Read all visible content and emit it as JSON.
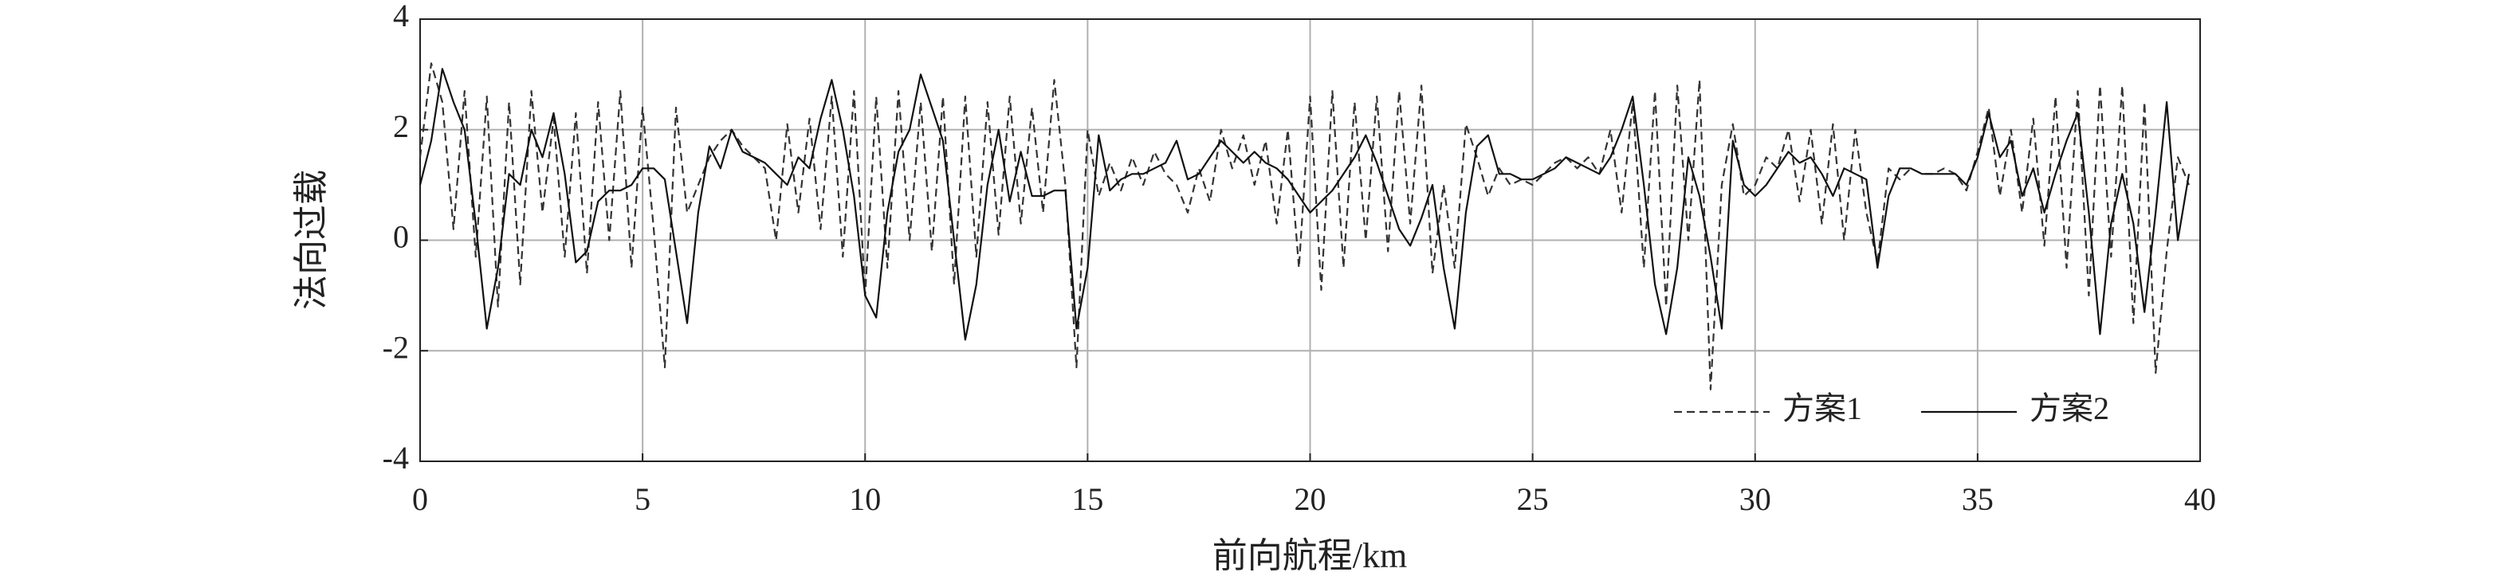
{
  "chart_data": {
    "type": "line",
    "xlabel": "前向航程/km",
    "ylabel": "法向过载",
    "xlim": [
      0,
      40
    ],
    "xticks": [
      0,
      5,
      10,
      15,
      20,
      25,
      30,
      35,
      40
    ],
    "ylim": [
      -4,
      4
    ],
    "yticks": [
      -4,
      -2,
      0,
      2,
      4
    ],
    "grid": true,
    "legend": "lower right",
    "x": [
      0,
      0.25,
      0.5,
      0.75,
      1,
      1.25,
      1.5,
      1.75,
      2,
      2.25,
      2.5,
      2.75,
      3,
      3.25,
      3.5,
      3.75,
      4,
      4.25,
      4.5,
      4.75,
      5,
      5.25,
      5.5,
      5.75,
      6,
      6.25,
      6.5,
      6.75,
      7,
      7.25,
      7.5,
      7.75,
      8,
      8.25,
      8.5,
      8.75,
      9,
      9.25,
      9.5,
      9.75,
      10,
      10.25,
      10.5,
      10.75,
      11,
      11.25,
      11.5,
      11.75,
      12,
      12.25,
      12.5,
      12.75,
      13,
      13.25,
      13.5,
      13.75,
      14,
      14.25,
      14.5,
      14.75,
      15,
      15.25,
      15.5,
      15.75,
      16,
      16.25,
      16.5,
      16.75,
      17,
      17.25,
      17.5,
      17.75,
      18,
      18.25,
      18.5,
      18.75,
      19,
      19.25,
      19.5,
      19.75,
      20,
      20.25,
      20.5,
      20.75,
      21,
      21.25,
      21.5,
      21.75,
      22,
      22.25,
      22.5,
      22.75,
      23,
      23.25,
      23.5,
      23.75,
      24,
      24.25,
      24.5,
      24.75,
      25,
      25.25,
      25.5,
      25.75,
      26,
      26.25,
      26.5,
      26.75,
      27,
      27.25,
      27.5,
      27.75,
      28,
      28.25,
      28.5,
      28.75,
      29,
      29.25,
      29.5,
      29.75,
      30,
      30.25,
      30.5,
      30.75,
      31,
      31.25,
      31.5,
      31.75,
      32,
      32.25,
      32.5,
      32.75,
      33,
      33.25,
      33.5,
      33.75,
      34,
      34.25,
      34.5,
      34.75,
      35,
      35.25,
      35.5,
      35.75,
      36,
      36.25,
      36.5,
      36.75,
      37,
      37.25,
      37.5,
      37.75,
      38,
      38.25,
      38.5,
      38.75,
      39,
      39.25,
      39.5,
      39.75
    ],
    "series": [
      {
        "name": "方案1",
        "color": "#333333",
        "style": "dashed",
        "values": [
          1.5,
          3.2,
          2.5,
          0.2,
          2.7,
          -0.3,
          2.6,
          -1.2,
          2.5,
          -0.8,
          2.7,
          0.5,
          2.2,
          -0.3,
          2.3,
          -0.6,
          2.5,
          0.0,
          2.7,
          -0.5,
          2.4,
          0.2,
          -2.3,
          2.4,
          0.5,
          1.0,
          1.5,
          1.8,
          2.0,
          1.7,
          1.5,
          1.3,
          0.0,
          2.1,
          0.5,
          2.2,
          0.2,
          2.6,
          -0.3,
          2.7,
          -1.0,
          2.6,
          -0.5,
          2.7,
          0.0,
          2.5,
          -0.2,
          2.6,
          -0.8,
          2.6,
          -0.3,
          2.5,
          0.1,
          2.6,
          0.3,
          2.4,
          0.5,
          2.9,
          1.0,
          -2.3,
          2.0,
          0.8,
          1.4,
          0.9,
          1.5,
          1.0,
          1.6,
          1.2,
          1.0,
          0.5,
          1.3,
          0.7,
          2.0,
          1.3,
          1.9,
          1.0,
          1.8,
          0.3,
          2.0,
          -0.5,
          2.6,
          -0.9,
          2.7,
          -0.5,
          2.5,
          0.0,
          2.6,
          -0.2,
          2.7,
          0.3,
          2.8,
          -0.6,
          1.0,
          -0.5,
          2.1,
          1.5,
          0.8,
          1.3,
          1.0,
          1.1,
          1.0,
          1.2,
          1.4,
          1.5,
          1.3,
          1.5,
          1.2,
          2.0,
          0.5,
          2.5,
          -0.5,
          2.7,
          -1.2,
          2.8,
          0.0,
          2.9,
          -2.7,
          1.0,
          2.1,
          0.8,
          1.0,
          1.5,
          1.3,
          2.0,
          0.7,
          2.0,
          0.3,
          2.1,
          0.0,
          2.0,
          0.5,
          -0.4,
          1.3,
          1.1,
          1.3,
          1.2,
          1.2,
          1.3,
          1.2,
          0.9,
          1.6,
          2.4,
          0.8,
          2.0,
          0.5,
          2.2,
          -0.1,
          2.6,
          -0.5,
          2.7,
          -1.0,
          2.8,
          -0.3,
          2.8,
          -1.5,
          2.5,
          -2.4,
          -0.2,
          1.5,
          1.0
        ]
      },
      {
        "name": "方案2",
        "color": "#111111",
        "style": "solid",
        "values": [
          1.0,
          1.8,
          3.1,
          2.5,
          2.0,
          0.3,
          -1.6,
          -0.5,
          1.2,
          1.0,
          2.0,
          1.5,
          2.3,
          1.2,
          -0.4,
          -0.2,
          0.7,
          0.9,
          0.9,
          1.0,
          1.3,
          1.3,
          1.1,
          -0.2,
          -1.5,
          0.5,
          1.7,
          1.3,
          2.0,
          1.6,
          1.5,
          1.4,
          1.2,
          1.0,
          1.5,
          1.3,
          2.2,
          2.9,
          2.0,
          0.8,
          -1.0,
          -1.4,
          0.5,
          1.6,
          2.0,
          3.0,
          2.4,
          1.8,
          0.0,
          -1.8,
          -0.8,
          1.0,
          2.0,
          0.7,
          1.6,
          0.8,
          0.8,
          0.9,
          0.9,
          -1.6,
          -0.5,
          1.9,
          0.9,
          1.1,
          1.2,
          1.2,
          1.3,
          1.4,
          1.8,
          1.1,
          1.2,
          1.5,
          1.8,
          1.6,
          1.4,
          1.6,
          1.4,
          1.3,
          1.1,
          0.8,
          0.5,
          0.7,
          0.9,
          1.2,
          1.5,
          1.9,
          1.4,
          0.8,
          0.2,
          -0.1,
          0.4,
          1.0,
          -0.5,
          -1.6,
          0.5,
          1.7,
          1.9,
          1.2,
          1.2,
          1.1,
          1.1,
          1.2,
          1.3,
          1.5,
          1.4,
          1.3,
          1.2,
          1.5,
          2.0,
          2.6,
          1.0,
          -0.8,
          -1.7,
          -0.5,
          1.5,
          0.8,
          -0.3,
          -1.6,
          1.8,
          1.0,
          0.8,
          1.0,
          1.3,
          1.6,
          1.4,
          1.5,
          1.2,
          0.8,
          1.3,
          1.2,
          1.1,
          -0.5,
          0.8,
          1.3,
          1.3,
          1.2,
          1.2,
          1.2,
          1.2,
          1.0,
          1.5,
          2.3,
          1.5,
          1.8,
          0.8,
          1.3,
          0.5,
          1.2,
          1.8,
          2.3,
          0.5,
          -1.7,
          0.3,
          1.2,
          0.3,
          -1.3,
          0.5,
          2.5,
          0.0,
          1.2
        ]
      }
    ]
  }
}
